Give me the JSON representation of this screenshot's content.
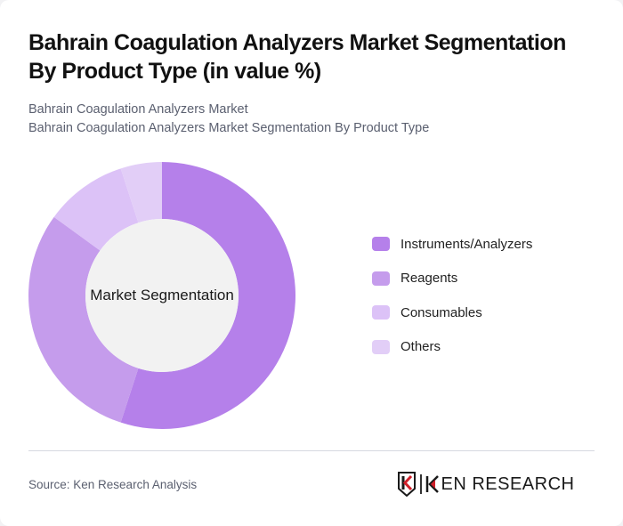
{
  "header": {
    "title": "Bahrain Coagulation Analyzers Market Segmentation By Product Type (in value %)",
    "subtitle_line1": "Bahrain Coagulation Analyzers Market",
    "subtitle_line2": "Bahrain Coagulation Analyzers Market Segmentation By Product Type"
  },
  "chart_data": {
    "type": "pie",
    "variant": "donut",
    "title": "Bahrain Coagulation Analyzers Market Segmentation By Product Type (in value %)",
    "center_label": "Market Segmentation",
    "categories": [
      "Instruments/Analyzers",
      "Reagents",
      "Consumables",
      "Others"
    ],
    "values": [
      55,
      30,
      10,
      5
    ],
    "colors": [
      "#b580ea",
      "#c59cec",
      "#dcc2f7",
      "#e2cef7"
    ],
    "start_angle_deg": 0,
    "direction": "clockwise",
    "legend_position": "right",
    "data_labels": false
  },
  "legend": {
    "items": [
      {
        "label": "Instruments/Analyzers",
        "color": "#b580ea"
      },
      {
        "label": "Reagents",
        "color": "#c59cec"
      },
      {
        "label": "Consumables",
        "color": "#dcc2f7"
      },
      {
        "label": "Others",
        "color": "#e2cef7"
      }
    ]
  },
  "footer": {
    "source": "Source: Ken Research Analysis",
    "logo_text": "KEN RESEARCH"
  },
  "colors": {
    "center_fill": "#f2f2f2",
    "brand_red": "#d0202a"
  }
}
